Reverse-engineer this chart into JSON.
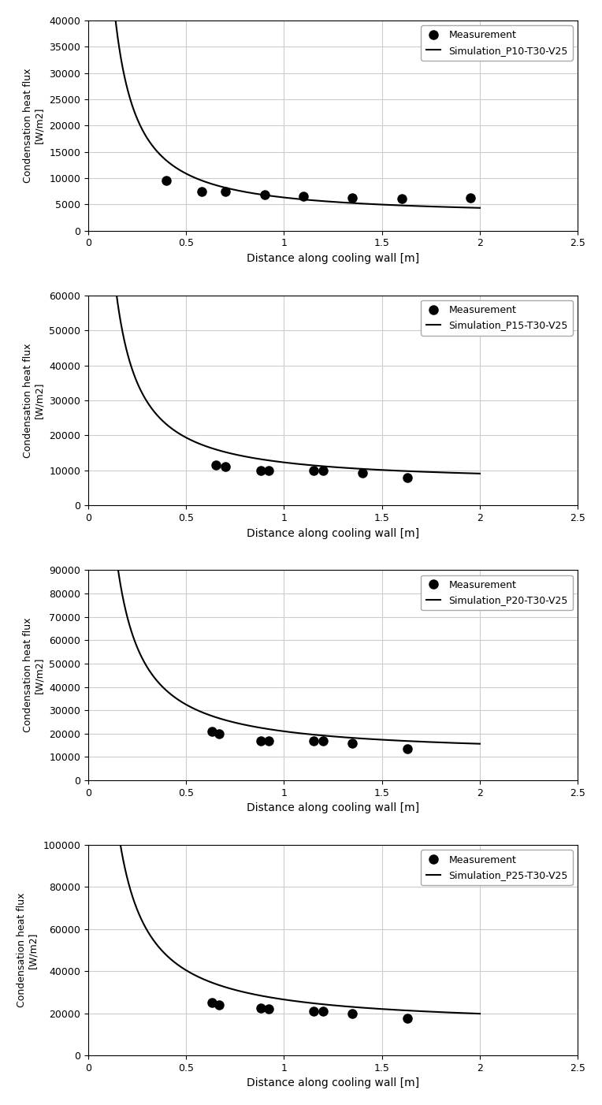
{
  "subplots": [
    {
      "sim_label": "Simulation_P10-T30-V25",
      "meas_x": [
        0.4,
        0.58,
        0.7,
        0.9,
        1.1,
        1.35,
        1.6,
        1.95
      ],
      "meas_y": [
        9500,
        7500,
        7500,
        6800,
        6500,
        6300,
        6100,
        6200
      ],
      "ylim": [
        0,
        40000
      ],
      "yticks": [
        0,
        5000,
        10000,
        15000,
        20000,
        25000,
        30000,
        35000,
        40000
      ],
      "A": 3500,
      "n": 1.2,
      "C": 2800
    },
    {
      "sim_label": "Simulation_P15-T30-V25",
      "meas_x": [
        0.65,
        0.7,
        0.88,
        0.92,
        1.15,
        1.2,
        1.4,
        1.63
      ],
      "meas_y": [
        11500,
        11000,
        10000,
        10000,
        10000,
        10000,
        9200,
        8000
      ],
      "ylim": [
        0,
        60000
      ],
      "yticks": [
        0,
        10000,
        20000,
        30000,
        40000,
        50000,
        60000
      ],
      "A": 5800,
      "n": 1.15,
      "C": 6500
    },
    {
      "sim_label": "Simulation_P20-T30-V25",
      "meas_x": [
        0.63,
        0.67,
        0.88,
        0.92,
        1.15,
        1.2,
        1.35,
        1.63
      ],
      "meas_y": [
        21000,
        20000,
        17000,
        17000,
        17000,
        17000,
        16000,
        13500
      ],
      "ylim": [
        0,
        90000
      ],
      "yticks": [
        0,
        10000,
        20000,
        30000,
        40000,
        50000,
        60000,
        70000,
        80000,
        90000
      ],
      "A": 10000,
      "n": 1.1,
      "C": 11000
    },
    {
      "sim_label": "Simulation_P25-T30-V25",
      "meas_x": [
        0.63,
        0.67,
        0.88,
        0.92,
        1.15,
        1.2,
        1.35,
        1.63
      ],
      "meas_y": [
        25000,
        24000,
        22500,
        22000,
        21000,
        21000,
        20000,
        17500
      ],
      "ylim": [
        0,
        100000
      ],
      "yticks": [
        0,
        20000,
        40000,
        60000,
        80000,
        100000
      ],
      "A": 13000,
      "n": 1.05,
      "C": 13500
    }
  ],
  "xlabel": "Distance along cooling wall [m]",
  "ylabel": "Condensation heat flux\n[W/m2]",
  "meas_label": "Measurement",
  "xlim": [
    0,
    2.5
  ],
  "xticks": [
    0,
    0.5,
    1.0,
    1.5,
    2.0,
    2.5
  ],
  "line_color": "#000000",
  "marker_color": "#000000",
  "bg_color": "#ffffff",
  "grid_color": "#cccccc",
  "x_sim_start": 0.005,
  "x_sim_end": 2.0
}
